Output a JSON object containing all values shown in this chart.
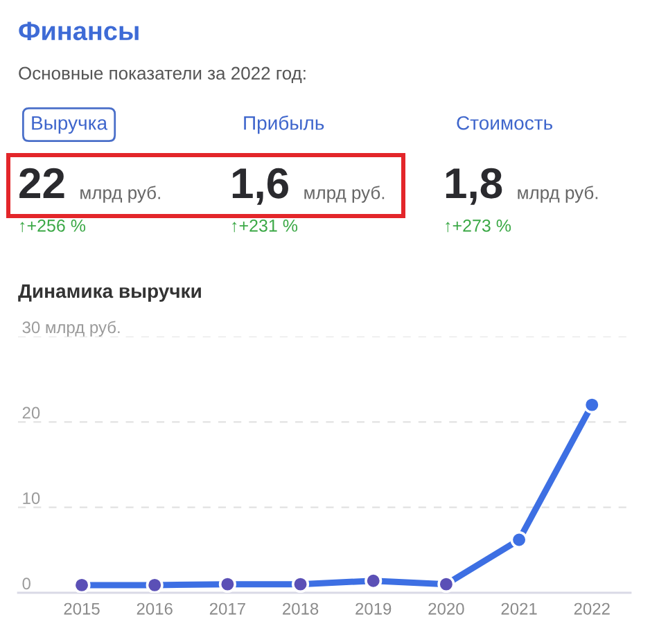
{
  "chart_data": [
    {
      "type": "other",
      "title": "Финансы",
      "subtitle": "Основные показатели за 2022 год:",
      "annotations": [
        "Выручка",
        "Прибыль",
        "Стоимость",
        "22",
        "млрд руб.",
        "1,6",
        "млрд руб.",
        "1,8",
        "млрд руб.",
        "↑+256 %",
        "↑+231 %",
        "↑+273 %"
      ]
    },
    {
      "type": "line",
      "title": "Динамика выручки",
      "categories": [
        "2015",
        "2016",
        "2017",
        "2018",
        "2019",
        "2020",
        "2021",
        "2022"
      ],
      "series": [
        {
          "color": "#3d6fe3",
          "colors": [
            "#5b50b6",
            "#5b50b6",
            "#5b50b6",
            "#5b50b6",
            "#5b50b6",
            "#5b50b6",
            "#3d6fe3",
            "#3d6fe3"
          ],
          "values": [
            0.9,
            0.9,
            1.0,
            1.0,
            1.4,
            1.0,
            6.2,
            22
          ]
        }
      ],
      "ylim": [
        0,
        30
      ],
      "yticks": [
        0,
        10,
        20,
        {
          "value": 30,
          "label": "30 млрд руб."
        }
      ],
      "grid": "y",
      "marker": "circle"
    }
  ]
}
